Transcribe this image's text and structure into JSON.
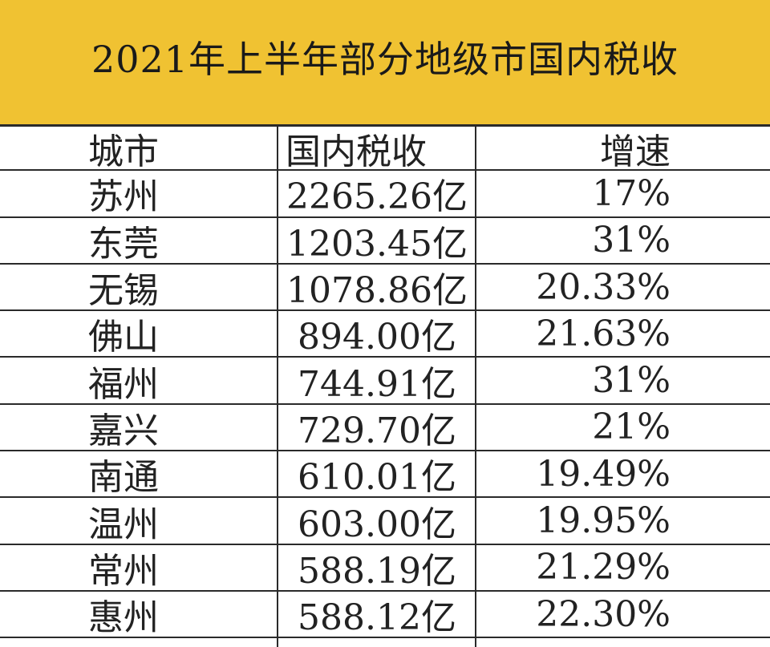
{
  "title": "2021年上半年部分地级市国内税收",
  "header": {
    "city": "城市",
    "tax": "国内税收",
    "growth": "增速"
  },
  "rows": [
    {
      "city": "苏州",
      "tax": "2265.26亿",
      "growth": "17%"
    },
    {
      "city": "东莞",
      "tax": "1203.45亿",
      "growth": "31%"
    },
    {
      "city": "无锡",
      "tax": "1078.86亿",
      "growth": "20.33%"
    },
    {
      "city": "佛山",
      "tax": "894.00亿",
      "growth": "21.63%"
    },
    {
      "city": "福州",
      "tax": "744.91亿",
      "growth": "31%"
    },
    {
      "city": "嘉兴",
      "tax": "729.70亿",
      "growth": "21%"
    },
    {
      "city": "南通",
      "tax": "610.01亿",
      "growth": "19.49%"
    },
    {
      "city": "温州",
      "tax": "603.00亿",
      "growth": "19.95%"
    },
    {
      "city": "常州",
      "tax": "588.19亿",
      "growth": "21.29%"
    },
    {
      "city": "惠州",
      "tax": "588.12亿",
      "growth": "22.30%"
    }
  ],
  "colors": {
    "title_band": "#f0c232",
    "grid": "#2a2a2a",
    "text": "#222222"
  }
}
